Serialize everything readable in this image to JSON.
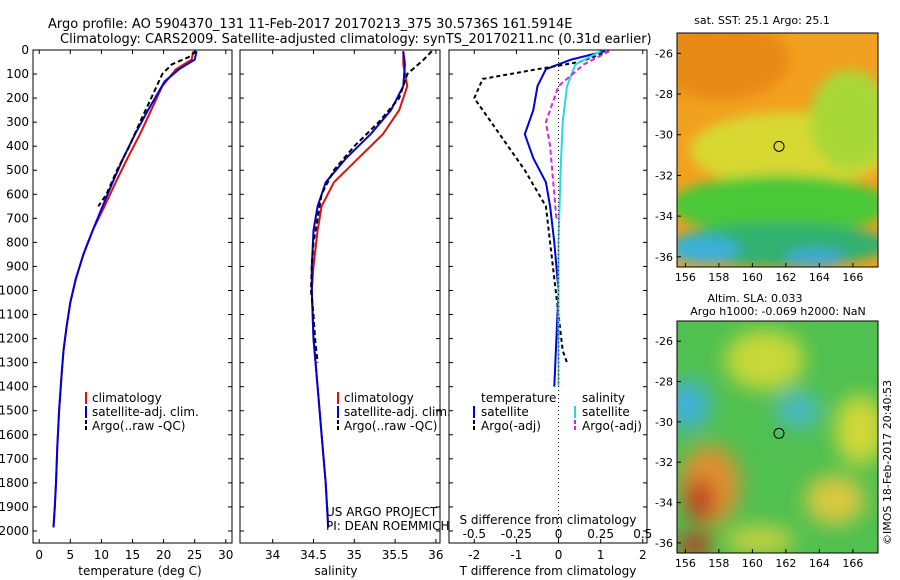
{
  "header": {
    "title_line1": "Argo profile: AO 5904370_131 11-Feb-2017 20170213_375 30.5736S 161.5914E",
    "title_line2": "Climatology: CARS2009. Satellite-adjusted climatology: synTS_20170211.nc (0.31d earlier)"
  },
  "credit": {
    "project": "US ARGO PROJECT",
    "pi": "PI: DEAN ROEMMICH",
    "watermark": "©IMOS 18-Feb-2017 20:40:53"
  },
  "colors": {
    "climatology": "#dd1111",
    "satellite": "#0000dd",
    "argo": "#000000",
    "sat_salinity": "#22dddd",
    "argo_salinity": "#dd22dd"
  },
  "chart_data": [
    {
      "id": "temperature",
      "type": "line",
      "xlabel": "temperature (deg C)",
      "ylabel": "",
      "xlim": [
        -1,
        31
      ],
      "ylim": [
        2050,
        0
      ],
      "xticks": [
        0,
        5,
        10,
        15,
        20,
        25,
        30
      ],
      "yticks": [
        0,
        100,
        200,
        300,
        400,
        500,
        600,
        700,
        800,
        900,
        1000,
        1100,
        1200,
        1300,
        1400,
        1500,
        1600,
        1700,
        1800,
        1900,
        2000
      ],
      "legend": [
        {
          "label": "climatology",
          "color": "#dd1111"
        },
        {
          "label": "satellite-adj. clim.",
          "color": "#0000dd"
        },
        {
          "label": "Argo(..raw -QC)",
          "color": "#000000"
        }
      ],
      "series": [
        {
          "name": "climatology",
          "color": "#dd1111",
          "dash": "",
          "points": [
            [
              24.8,
              5
            ],
            [
              24.5,
              40
            ],
            [
              22,
              80
            ],
            [
              19.8,
              150
            ],
            [
              18,
              250
            ],
            [
              16.2,
              350
            ],
            [
              14.2,
              450
            ],
            [
              12.3,
              550
            ],
            [
              10.5,
              650
            ],
            [
              8.6,
              750
            ],
            [
              7.1,
              850
            ],
            [
              5.9,
              950
            ],
            [
              5.0,
              1050
            ],
            [
              4.4,
              1150
            ],
            [
              3.9,
              1250
            ],
            [
              3.6,
              1350
            ],
            [
              3.2,
              1500
            ],
            [
              2.9,
              1650
            ],
            [
              2.7,
              1800
            ],
            [
              2.5,
              1900
            ],
            [
              2.3,
              1985
            ]
          ]
        },
        {
          "name": "satellite-adj. clim.",
          "color": "#0000dd",
          "dash": "",
          "points": [
            [
              25.3,
              5
            ],
            [
              25,
              40
            ],
            [
              22.5,
              80
            ],
            [
              20.2,
              130
            ],
            [
              17.5,
              250
            ],
            [
              15.4,
              350
            ],
            [
              13.5,
              450
            ],
            [
              11.8,
              550
            ],
            [
              10.2,
              650
            ],
            [
              8.6,
              750
            ],
            [
              7.1,
              850
            ],
            [
              5.9,
              950
            ],
            [
              5.0,
              1050
            ],
            [
              4.4,
              1150
            ],
            [
              3.9,
              1250
            ],
            [
              3.6,
              1350
            ],
            [
              3.2,
              1500
            ],
            [
              2.9,
              1650
            ],
            [
              2.7,
              1800
            ],
            [
              2.5,
              1900
            ],
            [
              2.3,
              1985
            ]
          ]
        },
        {
          "name": "Argo(..raw -QC)",
          "color": "#000000",
          "dash": "5,3",
          "points": [
            [
              25.2,
              5
            ],
            [
              24,
              30
            ],
            [
              21.3,
              60
            ],
            [
              19.8,
              100
            ],
            [
              18,
              200
            ],
            [
              16.2,
              300
            ],
            [
              14.5,
              400
            ],
            [
              12.5,
              500
            ],
            [
              10.8,
              600
            ],
            [
              9.5,
              650
            ]
          ]
        }
      ]
    },
    {
      "id": "salinity",
      "type": "line",
      "xlabel": "salinity",
      "ylabel": "",
      "xlim": [
        33.6,
        36.05
      ],
      "ylim": [
        2050,
        0
      ],
      "xticks": [
        34,
        34.5,
        35,
        35.5,
        36
      ],
      "legend": [
        {
          "label": "climatology",
          "color": "#dd1111"
        },
        {
          "label": "satellite-adj. clim.",
          "color": "#0000dd"
        },
        {
          "label": "Argo(..raw -QC)",
          "color": "#000000"
        }
      ],
      "series": [
        {
          "name": "climatology",
          "color": "#dd1111",
          "dash": "",
          "points": [
            [
              35.6,
              5
            ],
            [
              35.6,
              60
            ],
            [
              35.65,
              150
            ],
            [
              35.55,
              250
            ],
            [
              35.35,
              350
            ],
            [
              35.05,
              450
            ],
            [
              34.75,
              550
            ],
            [
              34.6,
              650
            ],
            [
              34.55,
              750
            ],
            [
              34.5,
              900
            ],
            [
              34.48,
              1000
            ],
            [
              34.5,
              1200
            ],
            [
              34.55,
              1400
            ],
            [
              34.6,
              1600
            ],
            [
              34.65,
              1800
            ],
            [
              34.68,
              1985
            ]
          ]
        },
        {
          "name": "satellite-adj. clim.",
          "color": "#0000dd",
          "dash": "",
          "points": [
            [
              35.6,
              5
            ],
            [
              35.62,
              60
            ],
            [
              35.6,
              150
            ],
            [
              35.45,
              250
            ],
            [
              35.2,
              350
            ],
            [
              34.9,
              450
            ],
            [
              34.65,
              550
            ],
            [
              34.55,
              650
            ],
            [
              34.5,
              750
            ],
            [
              34.48,
              900
            ],
            [
              34.48,
              1000
            ],
            [
              34.5,
              1200
            ],
            [
              34.55,
              1400
            ],
            [
              34.6,
              1600
            ],
            [
              34.65,
              1800
            ],
            [
              34.68,
              1985
            ]
          ]
        },
        {
          "name": "Argo(..raw -QC)",
          "color": "#000000",
          "dash": "5,3",
          "points": [
            [
              35.95,
              5
            ],
            [
              35.85,
              40
            ],
            [
              35.65,
              100
            ],
            [
              35.55,
              200
            ],
            [
              35.3,
              300
            ],
            [
              35.0,
              400
            ],
            [
              34.75,
              500
            ],
            [
              34.6,
              600
            ],
            [
              34.55,
              700
            ],
            [
              34.5,
              800
            ],
            [
              34.48,
              900
            ],
            [
              34.47,
              1000
            ],
            [
              34.5,
              1100
            ],
            [
              34.52,
              1200
            ],
            [
              34.55,
              1300
            ]
          ]
        }
      ]
    },
    {
      "id": "difference",
      "type": "line",
      "xlabel": "T difference from climatology",
      "xlabel_top": "S difference from climatology",
      "xlim": [
        -2.6,
        2.1
      ],
      "ylim": [
        2050,
        0
      ],
      "xticks": [
        -2,
        -1,
        0,
        1,
        2
      ],
      "sticks": [
        {
          "label": "-0.5",
          "t": -2
        },
        {
          "label": "-0.25",
          "t": -1
        },
        {
          "label": "0",
          "t": 0
        },
        {
          "label": "0.25",
          "t": 1
        },
        {
          "label": "0.5",
          "t": 2
        }
      ],
      "legend": {
        "col1_head": "temperature",
        "col2_head": "salinity",
        "items": [
          {
            "label": "satellite",
            "color": "#0000dd",
            "col": 1,
            "row": 1
          },
          {
            "label": "Argo(-adj)",
            "color": "#000000",
            "col": 1,
            "row": 2
          },
          {
            "label": "satellite",
            "color": "#22dddd",
            "col": 2,
            "row": 1
          },
          {
            "label": "Argo(-adj)",
            "color": "#dd22dd",
            "col": 2,
            "row": 2
          }
        ]
      },
      "series": [
        {
          "name": "satellite",
          "color": "#0000dd",
          "dash": "",
          "points": [
            [
              1.1,
              5
            ],
            [
              0.3,
              40
            ],
            [
              -0.3,
              80
            ],
            [
              -0.5,
              150
            ],
            [
              -0.6,
              250
            ],
            [
              -0.8,
              350
            ],
            [
              -0.6,
              450
            ],
            [
              -0.3,
              550
            ],
            [
              -0.2,
              650
            ],
            [
              -0.1,
              800
            ],
            [
              0,
              1000
            ],
            [
              -0.05,
              1200
            ],
            [
              -0.1,
              1400
            ]
          ]
        },
        {
          "name": "Argo(-adj)",
          "color": "#000000",
          "dash": "4,3",
          "points": [
            [
              1.2,
              5
            ],
            [
              0.5,
              50
            ],
            [
              -0.5,
              80
            ],
            [
              -1.8,
              120
            ],
            [
              -2.0,
              200
            ],
            [
              -1.6,
              300
            ],
            [
              -1.2,
              400
            ],
            [
              -0.8,
              500
            ],
            [
              -0.3,
              650
            ],
            [
              0.1,
              1250
            ],
            [
              0.2,
              1300
            ]
          ]
        },
        {
          "name": "satellite",
          "color": "#22dddd",
          "dash": "",
          "points": [
            [
              1.0,
              5
            ],
            [
              0.4,
              60
            ],
            [
              0.2,
              150
            ],
            [
              0.1,
              300
            ],
            [
              0.05,
              500
            ],
            [
              0,
              800
            ],
            [
              0,
              1000
            ],
            [
              0,
              1200
            ],
            [
              0,
              1400
            ]
          ]
        },
        {
          "name": "Argo(-adj)",
          "color": "#dd22dd",
          "dash": "5,3",
          "points": [
            [
              1.2,
              5
            ],
            [
              0.6,
              60
            ],
            [
              0.0,
              150
            ],
            [
              -0.3,
              300
            ],
            [
              -0.2,
              400
            ],
            [
              -0.1,
              600
            ],
            [
              -0.05,
              700
            ]
          ]
        }
      ]
    },
    {
      "id": "sst-map",
      "type": "heatmap",
      "title": "sat. SST: 25.1  Argo: 25.1",
      "xlim": [
        155.5,
        167.5
      ],
      "ylim": [
        -36.5,
        -25
      ],
      "xticks": [
        156,
        158,
        160,
        162,
        164,
        166
      ],
      "yticks": [
        -26,
        -28,
        -30,
        -32,
        -34,
        -36
      ],
      "marker": {
        "lon": 161.59,
        "lat": -30.57
      }
    },
    {
      "id": "sla-map",
      "type": "heatmap",
      "title": "Altim. SLA: 0.033",
      "subtitle": "Argo h1000: -0.069 h2000: NaN",
      "xlim": [
        155.5,
        167.5
      ],
      "ylim": [
        -36.5,
        -25
      ],
      "xticks": [
        156,
        158,
        160,
        162,
        164,
        166
      ],
      "yticks": [
        -26,
        -28,
        -30,
        -32,
        -34,
        -36
      ],
      "marker": {
        "lon": 161.59,
        "lat": -30.57
      }
    }
  ]
}
